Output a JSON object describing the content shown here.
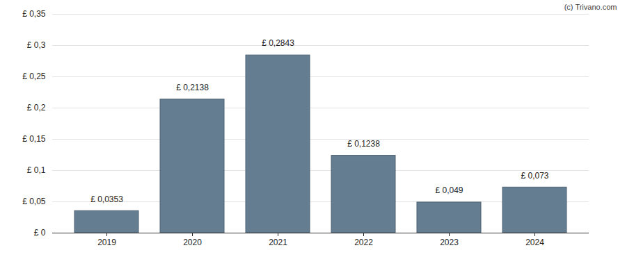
{
  "chart_data": {
    "type": "bar",
    "annotations": [
      "(c) Trivano.com"
    ],
    "categories": [
      "2019",
      "2020",
      "2021",
      "2022",
      "2023",
      "2024"
    ],
    "values": [
      0.0353,
      0.2138,
      0.2843,
      0.1238,
      0.049,
      0.073
    ],
    "value_labels": [
      "£ 0,0353",
      "£ 0,2138",
      "£ 0,2843",
      "£ 0,1238",
      "£ 0,049",
      "£ 0,073"
    ],
    "data_labels": true,
    "color": "#647d91",
    "ylim": [
      0,
      0.35
    ],
    "yticks": [
      {
        "value": 0,
        "label": "£ 0"
      },
      {
        "value": 0.05,
        "label": "£ 0,05"
      },
      {
        "value": 0.1,
        "label": "£ 0,1"
      },
      {
        "value": 0.15,
        "label": "£ 0,15"
      },
      {
        "value": 0.2,
        "label": "£ 0,2"
      },
      {
        "value": 0.25,
        "label": "£ 0,25"
      },
      {
        "value": 0.3,
        "label": "£ 0,3"
      },
      {
        "value": 0.35,
        "label": "£ 0,35"
      }
    ],
    "grid": true
  }
}
